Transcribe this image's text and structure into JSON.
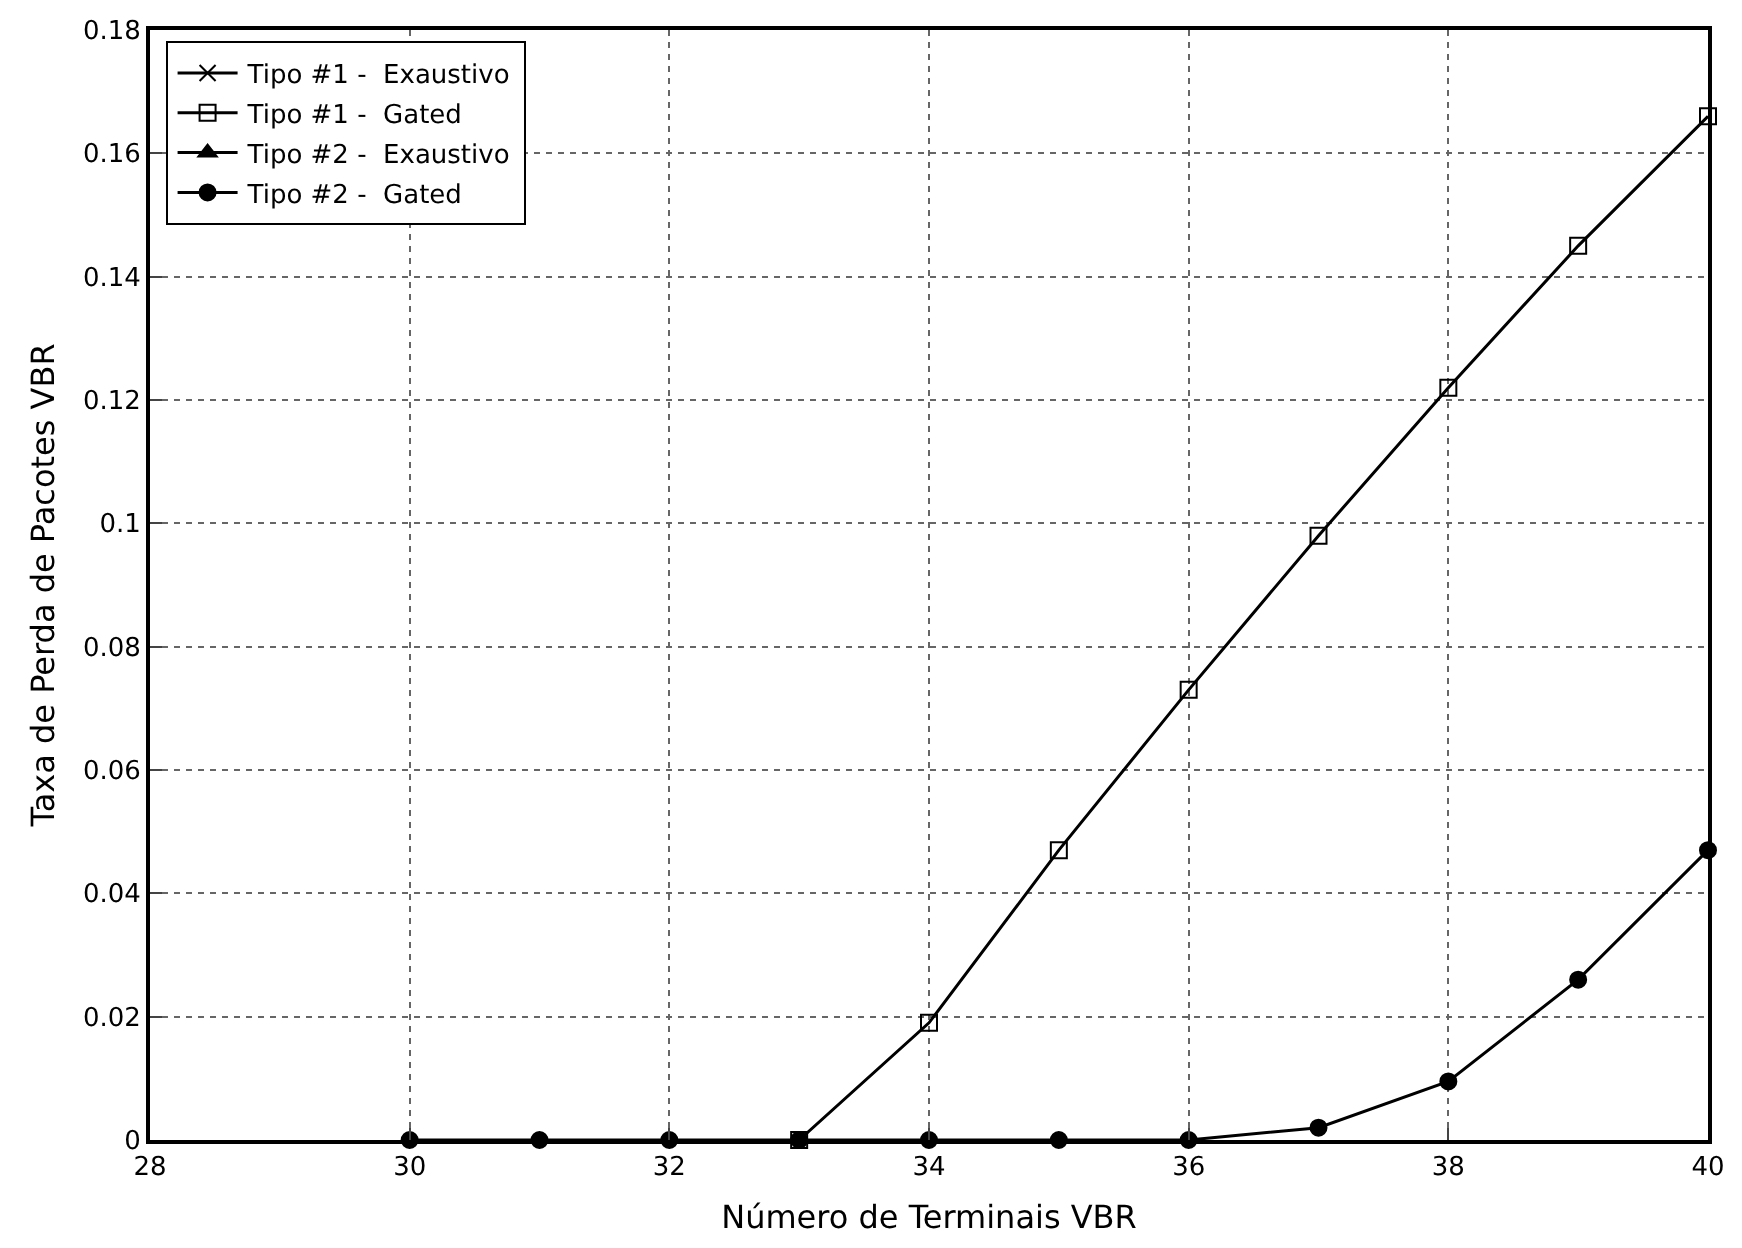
{
  "chart_data": {
    "type": "line",
    "xlabel": "Número de Terminais VBR",
    "ylabel": "Taxa de Perda de Pacotes VBR",
    "x": [
      30,
      31,
      32,
      33,
      34,
      35,
      36,
      37,
      38,
      39,
      40
    ],
    "series": [
      {
        "name": "Tipo #1 -  Exaustivo",
        "color": "#000000",
        "marker": "cross",
        "values": [
          null,
          null,
          null,
          null,
          null,
          null,
          null,
          null,
          null,
          null,
          null
        ]
      },
      {
        "name": "Tipo #1 -  Gated",
        "color": "#000000",
        "marker": "square",
        "values": [
          null,
          null,
          null,
          0,
          0.019,
          0.047,
          0.073,
          0.098,
          0.122,
          0.145,
          0.166
        ]
      },
      {
        "name": "Tipo #2 -  Exaustivo",
        "color": "#000000",
        "marker": "triangle",
        "values": [
          null,
          null,
          null,
          null,
          null,
          null,
          null,
          null,
          null,
          null,
          null
        ]
      },
      {
        "name": "Tipo #2 -  Gated",
        "color": "#000000",
        "marker": "circle",
        "values": [
          0,
          0,
          0,
          0,
          0,
          0,
          0,
          0.002,
          0.0095,
          0.026,
          0.047
        ]
      }
    ],
    "xlim": [
      28,
      40
    ],
    "xticks": [
      28,
      30,
      32,
      34,
      36,
      38,
      40
    ],
    "ylim": [
      0,
      0.18
    ],
    "yticks": [
      0,
      0.02,
      0.04,
      0.06,
      0.08,
      {
        "value": 0.1,
        "label": "0.1"
      },
      0.12,
      0.14,
      0.16,
      0.18
    ],
    "grid": true,
    "legend": "top left",
    "line_style": "solid"
  }
}
